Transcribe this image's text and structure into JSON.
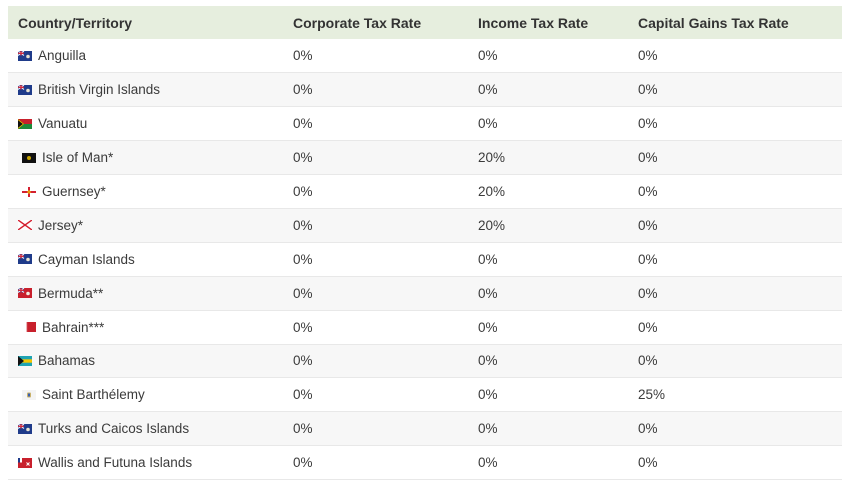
{
  "table": {
    "headers": [
      "Country/Territory",
      "Corporate Tax Rate",
      "Income Tax Rate",
      "Capital Gains Tax Rate"
    ],
    "rows": [
      {
        "country": "Anguilla",
        "corporate": "0%",
        "income": "0%",
        "capital_gains": "0%",
        "flag": "blue-ensign-flag-icon"
      },
      {
        "country": "British Virgin Islands",
        "corporate": "0%",
        "income": "0%",
        "capital_gains": "0%",
        "flag": "blue-ensign-flag-icon"
      },
      {
        "country": "Vanuatu",
        "corporate": "0%",
        "income": "0%",
        "capital_gains": "0%",
        "flag": "vanuatu-flag-icon"
      },
      {
        "country": "Isle of Man*",
        "corporate": "0%",
        "income": "20%",
        "capital_gains": "0%",
        "flag": "isle-of-man-flag-icon"
      },
      {
        "country": "Guernsey*",
        "corporate": "0%",
        "income": "20%",
        "capital_gains": "0%",
        "flag": "guernsey-flag-icon"
      },
      {
        "country": "Jersey*",
        "corporate": "0%",
        "income": "20%",
        "capital_gains": "0%",
        "flag": "jersey-flag-icon"
      },
      {
        "country": "Cayman Islands",
        "corporate": "0%",
        "income": "0%",
        "capital_gains": "0%",
        "flag": "blue-ensign-flag-icon"
      },
      {
        "country": "Bermuda**",
        "corporate": "0%",
        "income": "0%",
        "capital_gains": "0%",
        "flag": "red-ensign-flag-icon"
      },
      {
        "country": "Bahrain***",
        "corporate": "0%",
        "income": "0%",
        "capital_gains": "0%",
        "flag": "bahrain-flag-icon"
      },
      {
        "country": "Bahamas",
        "corporate": "0%",
        "income": "0%",
        "capital_gains": "0%",
        "flag": "bahamas-flag-icon"
      },
      {
        "country": "Saint Barthélemy",
        "corporate": "0%",
        "income": "0%",
        "capital_gains": "25%",
        "flag": "saint-barthelemy-flag-icon"
      },
      {
        "country": "Turks and Caicos Islands",
        "corporate": "0%",
        "income": "0%",
        "capital_gains": "0%",
        "flag": "blue-ensign-flag-icon"
      },
      {
        "country": "Wallis and Futuna Islands",
        "corporate": "0%",
        "income": "0%",
        "capital_gains": "0%",
        "flag": "wallis-futuna-flag-icon"
      }
    ]
  },
  "colors": {
    "header_bg": "#e6eede",
    "row_alt_bg": "#f7f7f7",
    "row_border": "#e8e8e8",
    "text": "#3b3b3b"
  }
}
